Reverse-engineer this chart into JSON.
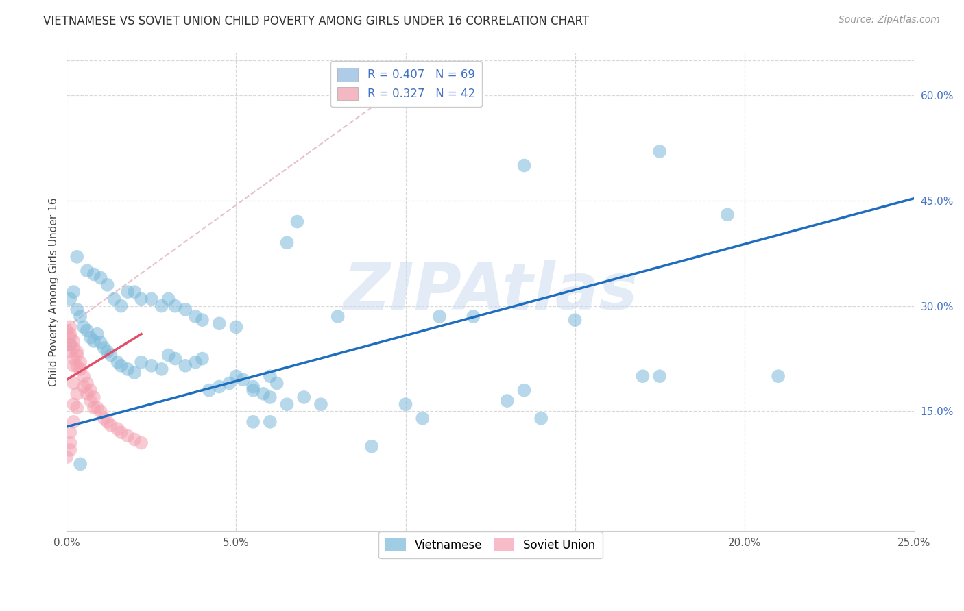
{
  "title": "VIETNAMESE VS SOVIET UNION CHILD POVERTY AMONG GIRLS UNDER 16 CORRELATION CHART",
  "source": "Source: ZipAtlas.com",
  "ylabel": "Child Poverty Among Girls Under 16",
  "xlim": [
    0.0,
    0.25
  ],
  "ylim": [
    -0.02,
    0.66
  ],
  "xticks": [
    0.0,
    0.05,
    0.1,
    0.15,
    0.2,
    0.25
  ],
  "yticks_right": [
    0.15,
    0.3,
    0.45,
    0.6
  ],
  "ytick_labels_right": [
    "15.0%",
    "30.0%",
    "45.0%",
    "60.0%"
  ],
  "xtick_labels": [
    "0.0%",
    "5.0%",
    "10.0%",
    "15.0%",
    "20.0%",
    "25.0%"
  ],
  "watermark": "ZIPAtlas",
  "viet_color": "#7ab8d9",
  "soviet_color": "#f4a0b0",
  "viet_line_color": "#1f6dbf",
  "soviet_line_color": "#e0506a",
  "ref_line_color": "#e8c0c8",
  "legend_box1_color": "#aecce8",
  "legend_box2_color": "#f4b8c4",
  "legend_R_N_color": "#4472c4",
  "right_axis_color": "#4472c4",
  "viet_scatter_x": [
    0.001,
    0.001,
    0.002,
    0.003,
    0.004,
    0.005,
    0.006,
    0.007,
    0.008,
    0.009,
    0.01,
    0.011,
    0.012,
    0.013,
    0.015,
    0.016,
    0.018,
    0.02,
    0.022,
    0.025,
    0.028,
    0.03,
    0.032,
    0.035,
    0.038,
    0.04,
    0.042,
    0.045,
    0.048,
    0.05,
    0.052,
    0.055,
    0.058,
    0.06,
    0.062,
    0.065,
    0.068,
    0.003,
    0.006,
    0.008,
    0.01,
    0.012,
    0.014,
    0.016,
    0.018,
    0.02,
    0.022,
    0.025,
    0.028,
    0.03,
    0.032,
    0.035,
    0.038,
    0.04,
    0.045,
    0.05,
    0.055,
    0.06,
    0.065,
    0.07,
    0.075,
    0.08,
    0.09,
    0.1,
    0.105,
    0.11,
    0.12,
    0.13,
    0.135,
    0.14,
    0.15,
    0.175,
    0.004,
    0.055,
    0.06,
    0.17,
    0.21,
    0.135,
    0.175,
    0.195
  ],
  "viet_scatter_y": [
    0.245,
    0.31,
    0.32,
    0.295,
    0.285,
    0.27,
    0.265,
    0.255,
    0.25,
    0.26,
    0.248,
    0.24,
    0.235,
    0.23,
    0.22,
    0.215,
    0.21,
    0.205,
    0.22,
    0.215,
    0.21,
    0.23,
    0.225,
    0.215,
    0.22,
    0.225,
    0.18,
    0.185,
    0.19,
    0.2,
    0.195,
    0.185,
    0.175,
    0.2,
    0.19,
    0.39,
    0.42,
    0.37,
    0.35,
    0.345,
    0.34,
    0.33,
    0.31,
    0.3,
    0.32,
    0.32,
    0.31,
    0.31,
    0.3,
    0.31,
    0.3,
    0.295,
    0.285,
    0.28,
    0.275,
    0.27,
    0.18,
    0.17,
    0.16,
    0.17,
    0.16,
    0.285,
    0.1,
    0.16,
    0.14,
    0.285,
    0.285,
    0.165,
    0.18,
    0.14,
    0.28,
    0.2,
    0.075,
    0.135,
    0.135,
    0.2,
    0.2,
    0.5,
    0.52,
    0.43
  ],
  "soviet_scatter_x": [
    0.0,
    0.0,
    0.001,
    0.001,
    0.001,
    0.001,
    0.001,
    0.001,
    0.001,
    0.001,
    0.002,
    0.002,
    0.002,
    0.002,
    0.002,
    0.002,
    0.002,
    0.003,
    0.003,
    0.003,
    0.003,
    0.003,
    0.004,
    0.004,
    0.005,
    0.005,
    0.006,
    0.006,
    0.007,
    0.007,
    0.008,
    0.008,
    0.009,
    0.01,
    0.011,
    0.012,
    0.013,
    0.015,
    0.016,
    0.018,
    0.02,
    0.022
  ],
  "soviet_scatter_y": [
    0.265,
    0.085,
    0.27,
    0.26,
    0.255,
    0.245,
    0.235,
    0.12,
    0.105,
    0.095,
    0.25,
    0.24,
    0.225,
    0.215,
    0.19,
    0.16,
    0.135,
    0.235,
    0.23,
    0.215,
    0.175,
    0.155,
    0.22,
    0.21,
    0.2,
    0.185,
    0.19,
    0.175,
    0.18,
    0.165,
    0.17,
    0.155,
    0.155,
    0.15,
    0.14,
    0.135,
    0.13,
    0.125,
    0.12,
    0.115,
    0.11,
    0.105
  ],
  "viet_line_x0": 0.0,
  "viet_line_y0": 0.128,
  "viet_line_x1": 0.25,
  "viet_line_y1": 0.453,
  "soviet_line_x0": 0.0,
  "soviet_line_y0": 0.195,
  "soviet_line_x1": 0.022,
  "soviet_line_y1": 0.26,
  "ref_line_x0": 0.0,
  "ref_line_y0": 0.27,
  "ref_line_x1": 0.095,
  "ref_line_y1": 0.6
}
